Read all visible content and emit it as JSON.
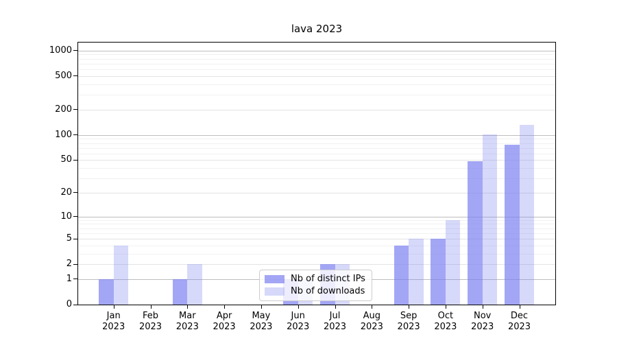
{
  "title": "lava 2023",
  "colors": {
    "bar_base": "#7c80f0",
    "bar_distinct_ips": "rgba(124,128,240,0.7)",
    "bar_downloads": "rgba(124,128,240,0.3)",
    "gridline_decade": "#bdbdbd",
    "gridline_major": "#e3e3e3",
    "gridline_minor": "#f1f1f1",
    "axis": "#000000",
    "background": "#ffffff"
  },
  "legend": {
    "items": [
      {
        "label": "Nb of distinct IPs"
      },
      {
        "label": "Nb of downloads"
      }
    ]
  },
  "chart_data": {
    "type": "bar",
    "title": "lava 2023",
    "categories": [
      "Jan 2023",
      "Feb 2023",
      "Mar 2023",
      "Apr 2023",
      "May 2023",
      "Jun 2023",
      "Jul 2023",
      "Aug 2023",
      "Sep 2023",
      "Oct 2023",
      "Nov 2023",
      "Dec 2023"
    ],
    "series": [
      {
        "name": "Nb of distinct IPs",
        "color": "rgba(124,128,240,0.7)",
        "values": [
          1,
          0,
          1,
          0,
          0,
          1,
          2,
          0,
          4,
          5,
          48,
          77
        ]
      },
      {
        "name": "Nb of downloads",
        "color": "rgba(124,128,240,0.3)",
        "values": [
          4,
          0,
          2,
          0,
          0,
          1,
          2,
          0,
          5,
          9,
          101,
          131
        ]
      }
    ],
    "xlabel": "",
    "ylabel": "",
    "yscale": "symlog",
    "yticks": [
      0,
      1,
      2,
      5,
      10,
      20,
      50,
      100,
      200,
      500,
      1000
    ],
    "decade_ticks": [
      1,
      10,
      100,
      1000
    ],
    "minor_ticks": [
      3,
      4,
      6,
      7,
      8,
      9,
      30,
      40,
      60,
      70,
      80,
      90,
      300,
      400,
      600,
      700,
      800,
      900
    ],
    "ylim": [
      0,
      1240
    ],
    "grid": true,
    "legend_position": "inside-bottom-center"
  }
}
